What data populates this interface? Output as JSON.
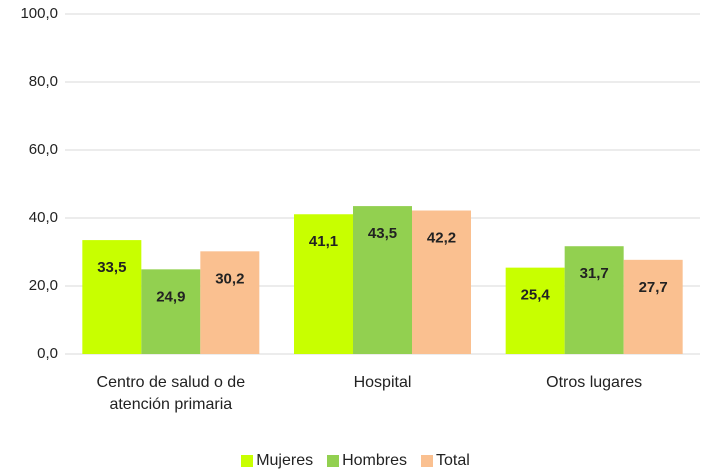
{
  "chart_data": {
    "type": "bar",
    "categories": [
      "Centro de salud o de atención primaria",
      "Hospital",
      "Otros lugares"
    ],
    "series": [
      {
        "name": "Mujeres",
        "color": "#c8ff00",
        "values": [
          33.5,
          41.1,
          25.4
        ],
        "value_labels": [
          "33,5",
          "41,1",
          "25,4"
        ]
      },
      {
        "name": "Hombres",
        "color": "#92d050",
        "values": [
          24.9,
          43.5,
          31.7
        ],
        "value_labels": [
          "24,9",
          "43,5",
          "31,7"
        ]
      },
      {
        "name": "Total",
        "color": "#fac090",
        "values": [
          30.2,
          42.2,
          27.7
        ],
        "value_labels": [
          "30,2",
          "42,2",
          "27,7"
        ]
      }
    ],
    "ylim": [
      0,
      100
    ],
    "yticks": [
      {
        "value": 0,
        "label": "0,0"
      },
      {
        "value": 20,
        "label": "20,0"
      },
      {
        "value": 40,
        "label": "40,0"
      },
      {
        "value": 60,
        "label": "60,0"
      },
      {
        "value": 80,
        "label": "80,0"
      },
      {
        "value": 100,
        "label": "100,0"
      }
    ],
    "grid": true,
    "legend": "bottom"
  }
}
